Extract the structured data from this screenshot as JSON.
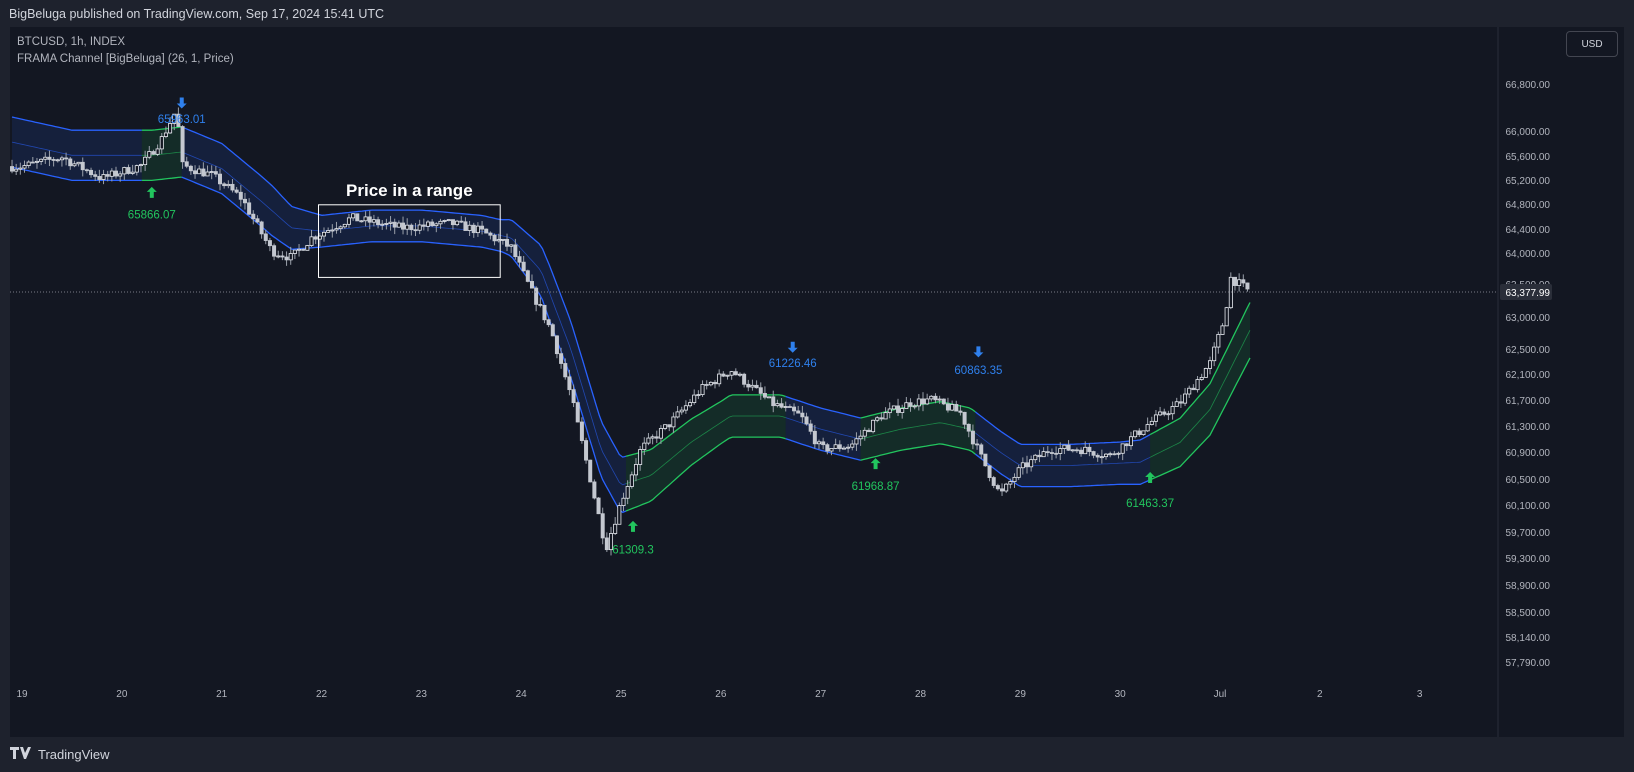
{
  "header": {
    "publish_text": "BigBeluga published on TradingView.com, Sep 17, 2024 15:41 UTC"
  },
  "legend": {
    "symbol_line": "BTCUSD, 1h, INDEX",
    "indicator_line": "FRAMA Channel [BigBeluga] (26, 1, Price)"
  },
  "currency_button": "USD",
  "footer": {
    "brand": "TradingView"
  },
  "colors": {
    "background": "#131722",
    "frame": "#1e222d",
    "bull": "#22c55e",
    "bear": "#2962ff",
    "label_bear": "#2f80ed",
    "text": "#b2b5be"
  },
  "chart_data": {
    "type": "candlestick",
    "title": "",
    "x_tick_labels": [
      "19",
      "20",
      "21",
      "22",
      "23",
      "24",
      "25",
      "26",
      "27",
      "28",
      "29",
      "30",
      "Jul",
      "2",
      "3"
    ],
    "y_tick_labels": [
      "66,800.00",
      "66,000.00",
      "65,600.00",
      "65,200.00",
      "64,800.00",
      "64,400.00",
      "64,000.00",
      "63,500.00",
      "63,000.00",
      "62,500.00",
      "62,100.00",
      "61,700.00",
      "61,300.00",
      "60,900.00",
      "60,500.00",
      "60,100.00",
      "59,700.00",
      "59,300.00",
      "58,900.00",
      "58,500.00",
      "58,140.00",
      "57,790.00"
    ],
    "last_price_label": "63,377.99",
    "last_price": 63377.99,
    "annotation": "Price in a range",
    "price_path": [
      {
        "x": 19.0,
        "y": 65280
      },
      {
        "x": 19.4,
        "y": 65420
      },
      {
        "x": 19.8,
        "y": 65100
      },
      {
        "x": 20.2,
        "y": 65300
      },
      {
        "x": 20.4,
        "y": 65700
      },
      {
        "x": 20.55,
        "y": 66150
      },
      {
        "x": 20.6,
        "y": 65300
      },
      {
        "x": 20.9,
        "y": 65150
      },
      {
        "x": 21.2,
        "y": 64800
      },
      {
        "x": 21.5,
        "y": 64000
      },
      {
        "x": 21.7,
        "y": 63900
      },
      {
        "x": 21.9,
        "y": 64200
      },
      {
        "x": 22.3,
        "y": 64500
      },
      {
        "x": 22.8,
        "y": 64350
      },
      {
        "x": 23.3,
        "y": 64420
      },
      {
        "x": 23.6,
        "y": 64300
      },
      {
        "x": 23.9,
        "y": 64050
      },
      {
        "x": 24.1,
        "y": 63400
      },
      {
        "x": 24.3,
        "y": 62800
      },
      {
        "x": 24.5,
        "y": 61800
      },
      {
        "x": 24.7,
        "y": 60500
      },
      {
        "x": 24.85,
        "y": 59500
      },
      {
        "x": 25.0,
        "y": 60200
      },
      {
        "x": 25.2,
        "y": 61000
      },
      {
        "x": 25.5,
        "y": 61400
      },
      {
        "x": 25.8,
        "y": 61900
      },
      {
        "x": 26.1,
        "y": 62200
      },
      {
        "x": 26.5,
        "y": 61700
      },
      {
        "x": 26.8,
        "y": 61500
      },
      {
        "x": 27.0,
        "y": 61000
      },
      {
        "x": 27.3,
        "y": 61050
      },
      {
        "x": 27.6,
        "y": 61500
      },
      {
        "x": 27.9,
        "y": 61700
      },
      {
        "x": 28.1,
        "y": 61750
      },
      {
        "x": 28.4,
        "y": 61550
      },
      {
        "x": 28.6,
        "y": 60900
      },
      {
        "x": 28.8,
        "y": 60300
      },
      {
        "x": 29.0,
        "y": 60700
      },
      {
        "x": 29.3,
        "y": 61000
      },
      {
        "x": 29.6,
        "y": 61000
      },
      {
        "x": 29.9,
        "y": 60900
      },
      {
        "x": 30.3,
        "y": 61400
      },
      {
        "x": 30.6,
        "y": 61700
      },
      {
        "x": 30.9,
        "y": 62300
      },
      {
        "x": 31.05,
        "y": 63000
      },
      {
        "x": 31.1,
        "y": 63600
      },
      {
        "x": 31.3,
        "y": 63380
      }
    ],
    "channel": {
      "basis": [
        {
          "x": 18.9,
          "y": 65650
        },
        {
          "x": 19.5,
          "y": 65450
        },
        {
          "x": 20.3,
          "y": 65450
        },
        {
          "x": 20.6,
          "y": 65500
        },
        {
          "x": 21.0,
          "y": 65250
        },
        {
          "x": 21.4,
          "y": 64750
        },
        {
          "x": 21.7,
          "y": 64350
        },
        {
          "x": 22.0,
          "y": 64300
        },
        {
          "x": 22.5,
          "y": 64380
        },
        {
          "x": 23.0,
          "y": 64380
        },
        {
          "x": 23.6,
          "y": 64300
        },
        {
          "x": 23.9,
          "y": 64200
        },
        {
          "x": 24.2,
          "y": 63700
        },
        {
          "x": 24.5,
          "y": 62500
        },
        {
          "x": 24.8,
          "y": 61000
        },
        {
          "x": 25.0,
          "y": 60450
        },
        {
          "x": 25.3,
          "y": 60600
        },
        {
          "x": 25.7,
          "y": 61100
        },
        {
          "x": 26.1,
          "y": 61500
        },
        {
          "x": 26.6,
          "y": 61500
        },
        {
          "x": 27.0,
          "y": 61300
        },
        {
          "x": 27.4,
          "y": 61150
        },
        {
          "x": 27.8,
          "y": 61300
        },
        {
          "x": 28.2,
          "y": 61400
        },
        {
          "x": 28.5,
          "y": 61300
        },
        {
          "x": 28.8,
          "y": 60950
        },
        {
          "x": 29.0,
          "y": 60750
        },
        {
          "x": 29.5,
          "y": 60750
        },
        {
          "x": 30.2,
          "y": 60800
        },
        {
          "x": 30.6,
          "y": 61100
        },
        {
          "x": 30.9,
          "y": 61600
        },
        {
          "x": 31.1,
          "y": 62200
        },
        {
          "x": 31.3,
          "y": 62800
        }
      ],
      "half_width": [
        {
          "x": 18.9,
          "y": 380
        },
        {
          "x": 21.5,
          "y": 380
        },
        {
          "x": 22.0,
          "y": 240
        },
        {
          "x": 23.8,
          "y": 240
        },
        {
          "x": 24.3,
          "y": 420
        },
        {
          "x": 25.0,
          "y": 420
        },
        {
          "x": 26.0,
          "y": 320
        },
        {
          "x": 30.0,
          "y": 320
        },
        {
          "x": 31.3,
          "y": 420
        }
      ],
      "trend_segments": [
        {
          "from": 18.9,
          "to": 20.2,
          "trend": "bear"
        },
        {
          "from": 20.2,
          "to": 20.6,
          "trend": "bull"
        },
        {
          "from": 20.6,
          "to": 25.05,
          "trend": "bear"
        },
        {
          "from": 25.05,
          "to": 26.65,
          "trend": "bull"
        },
        {
          "from": 26.65,
          "to": 27.4,
          "trend": "bear"
        },
        {
          "from": 27.4,
          "to": 28.55,
          "trend": "bull"
        },
        {
          "from": 28.55,
          "to": 30.3,
          "trend": "bear"
        },
        {
          "from": 30.3,
          "to": 31.3,
          "trend": "bull"
        }
      ]
    },
    "signals": [
      {
        "x": 20.6,
        "price": 66250,
        "label": "65963.01",
        "direction": "down",
        "label_y": 66000
      },
      {
        "x": 20.3,
        "price": 64880,
        "label": "65866.07",
        "direction": "up",
        "label_y": 64550
      },
      {
        "x": 26.72,
        "price": 62550,
        "label": "61226.46",
        "direction": "down",
        "label_y": 62300
      },
      {
        "x": 25.12,
        "price": 59820,
        "label": "61309.3",
        "direction": "up",
        "label_y": 59480
      },
      {
        "x": 28.58,
        "price": 62480,
        "label": "60863.35",
        "direction": "down",
        "label_y": 62200
      },
      {
        "x": 27.55,
        "price": 60770,
        "label": "61968.87",
        "direction": "up",
        "label_y": 60440
      },
      {
        "x": 30.3,
        "price": 60560,
        "label": "61463.37",
        "direction": "up",
        "label_y": 60180
      }
    ],
    "range_box": {
      "x_from": 21.97,
      "x_to": 23.79,
      "y_from": 63600,
      "y_to": 64700
    }
  }
}
